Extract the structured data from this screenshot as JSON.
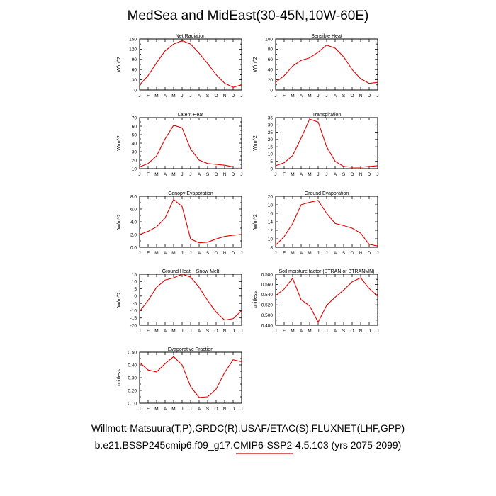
{
  "title": "MedSea and MidEast(30-45N,10W-60E)",
  "footer": {
    "observations": "Willmott-Matsuura(T,P),GRDC(R),USAF/ETAC(S),FLUXNET(LHF,GPP)",
    "case": "b.e21.BSSP245cmip6.f09_g17.CMIP6-SSP2-4.5.103 (yrs 2075-2099)"
  },
  "colors": {
    "line": "#e00000",
    "axis": "#000000"
  },
  "chart_data": [
    {
      "type": "line",
      "title": "Net Radiation",
      "xlabel": "",
      "ylabel": "W/m^2",
      "categories": [
        "J",
        "F",
        "M",
        "A",
        "M",
        "J",
        "J",
        "A",
        "S",
        "O",
        "N",
        "D",
        "J"
      ],
      "values": [
        15,
        42,
        80,
        115,
        135,
        145,
        135,
        108,
        78,
        45,
        20,
        8,
        15
      ],
      "ylim": [
        0,
        150
      ],
      "yticks": [
        0,
        15,
        30,
        45,
        60,
        75,
        90,
        105,
        120,
        135,
        150
      ],
      "ytick_labels": [
        "0",
        "",
        "30",
        "",
        "60",
        "",
        "90",
        "",
        "120",
        "",
        "150"
      ]
    },
    {
      "type": "line",
      "title": "Sensible Heat",
      "xlabel": "",
      "ylabel": "W/m^2",
      "categories": [
        "J",
        "F",
        "M",
        "A",
        "M",
        "J",
        "J",
        "A",
        "S",
        "O",
        "N",
        "D",
        "J"
      ],
      "values": [
        15,
        28,
        47,
        58,
        63,
        74,
        88,
        82,
        65,
        40,
        22,
        13,
        15
      ],
      "ylim": [
        0,
        100
      ],
      "yticks": [
        0,
        10,
        20,
        30,
        40,
        50,
        60,
        70,
        80,
        90,
        100
      ],
      "ytick_labels": [
        "0",
        "",
        "20",
        "",
        "40",
        "",
        "60",
        "",
        "80",
        "",
        "100"
      ]
    },
    {
      "type": "line",
      "title": "Latent Heat",
      "xlabel": "",
      "ylabel": "W/m^2",
      "categories": [
        "J",
        "F",
        "M",
        "A",
        "M",
        "J",
        "J",
        "A",
        "S",
        "O",
        "N",
        "D",
        "J"
      ],
      "values": [
        12,
        16,
        25,
        45,
        61,
        58,
        33,
        20,
        16,
        15,
        14,
        12,
        12
      ],
      "ylim": [
        10,
        70
      ],
      "yticks": [
        10,
        15,
        20,
        25,
        30,
        35,
        40,
        45,
        50,
        55,
        60,
        65,
        70
      ],
      "ytick_labels": [
        "10",
        "",
        "20",
        "",
        "30",
        "",
        "40",
        "",
        "50",
        "",
        "60",
        "",
        "70"
      ]
    },
    {
      "type": "line",
      "title": "Transpiration",
      "xlabel": "",
      "ylabel": "W/m^2",
      "categories": [
        "J",
        "F",
        "M",
        "A",
        "M",
        "J",
        "J",
        "A",
        "S",
        "O",
        "N",
        "D",
        "J"
      ],
      "values": [
        2,
        4,
        9,
        21,
        34,
        32,
        15,
        5,
        1.5,
        1,
        1,
        1.5,
        2
      ],
      "ylim": [
        0,
        35
      ],
      "yticks": [
        0,
        5,
        10,
        15,
        20,
        25,
        30,
        35
      ],
      "ytick_labels": [
        "0",
        "5",
        "10",
        "15",
        "20",
        "25",
        "30",
        "35"
      ]
    },
    {
      "type": "line",
      "title": "Canopy Evaporation",
      "xlabel": "",
      "ylabel": "W/m^2",
      "categories": [
        "J",
        "F",
        "M",
        "A",
        "M",
        "J",
        "J",
        "A",
        "S",
        "O",
        "N",
        "D",
        "J"
      ],
      "values": [
        2.0,
        2.5,
        3.2,
        4.6,
        7.5,
        6.4,
        1.3,
        0.7,
        0.8,
        1.3,
        1.7,
        1.9,
        2.0
      ],
      "ylim": [
        0,
        8
      ],
      "yticks": [
        0,
        1,
        2,
        3,
        4,
        5,
        6,
        7,
        8
      ],
      "ytick_labels": [
        "0.0",
        "",
        "2.0",
        "",
        "4.0",
        "",
        "6.0",
        "",
        "8.0"
      ]
    },
    {
      "type": "line",
      "title": "Ground Evaporation",
      "xlabel": "",
      "ylabel": "W/m^2",
      "categories": [
        "J",
        "F",
        "M",
        "A",
        "M",
        "J",
        "J",
        "A",
        "S",
        "O",
        "N",
        "D",
        "J"
      ],
      "values": [
        8.5,
        10.5,
        13.6,
        18.0,
        18.6,
        19.0,
        16.0,
        13.6,
        13.1,
        12.5,
        11.3,
        8.7,
        8.3
      ],
      "ylim": [
        8,
        20
      ],
      "yticks": [
        8,
        10,
        12,
        14,
        16,
        18,
        20
      ],
      "ytick_labels": [
        "8",
        "10",
        "12",
        "14",
        "16",
        "18",
        "20"
      ]
    },
    {
      "type": "line",
      "title": "Ground Heat + Snow Melt",
      "xlabel": "",
      "ylabel": "W/m^2",
      "categories": [
        "J",
        "F",
        "M",
        "A",
        "M",
        "J",
        "J",
        "A",
        "S",
        "O",
        "N",
        "D",
        "J"
      ],
      "values": [
        -10.5,
        -3,
        6,
        11,
        12.5,
        15,
        13,
        6,
        -3,
        -11,
        -16.5,
        -15.5,
        -10
      ],
      "ylim": [
        -20,
        15
      ],
      "yticks": [
        -20,
        -15,
        -10,
        -5,
        0,
        5,
        10,
        15
      ],
      "ytick_labels": [
        "-20",
        "-15",
        "-10",
        "-5",
        "0",
        "5",
        "10",
        "15"
      ]
    },
    {
      "type": "line",
      "title": "Soil moisture factor (BTRAN or BTRANMN)",
      "xlabel": "",
      "ylabel": "unitless",
      "categories": [
        "J",
        "F",
        "M",
        "A",
        "M",
        "J",
        "J",
        "A",
        "S",
        "O",
        "N",
        "D",
        "J"
      ],
      "values": [
        0.538,
        0.551,
        0.572,
        0.53,
        0.518,
        0.486,
        0.519,
        0.535,
        0.549,
        0.565,
        0.573,
        0.552,
        0.537
      ],
      "ylim": [
        0.48,
        0.58
      ],
      "yticks": [
        0.48,
        0.49,
        0.5,
        0.51,
        0.52,
        0.53,
        0.54,
        0.55,
        0.56,
        0.57,
        0.58
      ],
      "ytick_labels": [
        "0.480",
        "",
        "0.500",
        "",
        "0.520",
        "",
        "0.540",
        "",
        "0.560",
        "",
        "0.580"
      ]
    },
    {
      "type": "line",
      "title": "Evaporative Fraction",
      "xlabel": "",
      "ylabel": "unitless",
      "categories": [
        "J",
        "F",
        "M",
        "A",
        "M",
        "J",
        "J",
        "A",
        "S",
        "O",
        "N",
        "D",
        "J"
      ],
      "values": [
        0.42,
        0.36,
        0.345,
        0.41,
        0.465,
        0.4,
        0.23,
        0.145,
        0.15,
        0.21,
        0.34,
        0.44,
        0.425
      ],
      "ylim": [
        0.1,
        0.5
      ],
      "yticks": [
        0.1,
        0.15,
        0.2,
        0.25,
        0.3,
        0.35,
        0.4,
        0.45,
        0.5
      ],
      "ytick_labels": [
        "0.10",
        "",
        "0.20",
        "",
        "0.30",
        "",
        "0.40",
        "",
        "0.50"
      ]
    }
  ]
}
